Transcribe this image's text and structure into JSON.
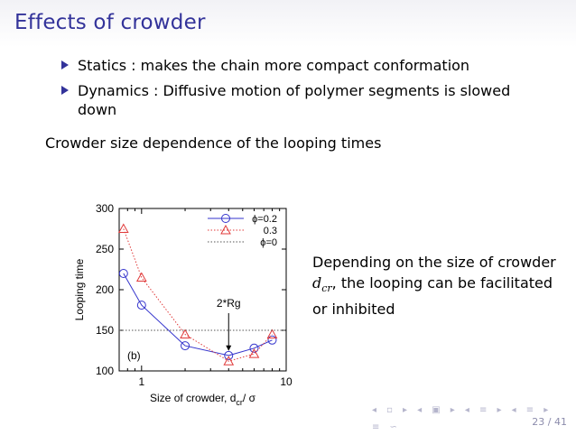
{
  "slide": {
    "title": "Effects of crowder",
    "bullets": [
      "Statics : makes the chain more compact conformation",
      "Dynamics : Diffusive motion of polymer segments is slowed down"
    ],
    "subheading": "Crowder size dependence of the looping times",
    "side_text": {
      "part1": "Depending on the size of crowder ",
      "var": "d",
      "var_sub": "cr",
      "part2": ", the looping can be facilitated or inhibited"
    },
    "page": "23 / 41"
  },
  "colors": {
    "title": "#33339a",
    "series_phi02": "#3333cc",
    "series_03": "#e03a3a",
    "series_phi0": "#555555"
  },
  "nav_icons": [
    "prev-frame-icon",
    "next-frame-icon",
    "prev-subsection-icon",
    "next-subsection-icon",
    "prev-section-icon",
    "next-section-icon",
    "prev-slide-icon",
    "next-slide-icon",
    "align-icon",
    "search-icon"
  ],
  "chart_data": {
    "type": "line",
    "xscale": "log",
    "xlim": [
      0.7,
      10
    ],
    "ylim": [
      100,
      300
    ],
    "xticks": [
      1,
      10
    ],
    "yticks": [
      100,
      150,
      200,
      250,
      300
    ],
    "xlabel": "Size of crowder, d",
    "xlabel_sub": "cr",
    "xlabel_tail": "/ σ",
    "ylabel": "Looping time",
    "panel_label": "(b)",
    "annotation": {
      "text": "2*Rg",
      "x": 4.0,
      "y": 118
    },
    "series": [
      {
        "name": "ϕ=0.2",
        "style": "solid",
        "marker": "circle",
        "color": "#3333cc",
        "x": [
          0.75,
          1.0,
          2.0,
          4.0,
          6.0,
          8.0
        ],
        "y": [
          220,
          181,
          131,
          119,
          128,
          138
        ]
      },
      {
        "name": "0.3",
        "style": "dotted",
        "marker": "triangle",
        "color": "#e03a3a",
        "x": [
          0.75,
          1.0,
          2.0,
          4.0,
          6.0,
          8.0
        ],
        "y": [
          275,
          215,
          145,
          112,
          121,
          145
        ]
      },
      {
        "name": "ϕ=0",
        "style": "dotted",
        "marker": "none",
        "color": "#555555",
        "x": [
          0.7,
          10
        ],
        "y": [
          150,
          150
        ]
      }
    ],
    "legend": "top-right"
  }
}
